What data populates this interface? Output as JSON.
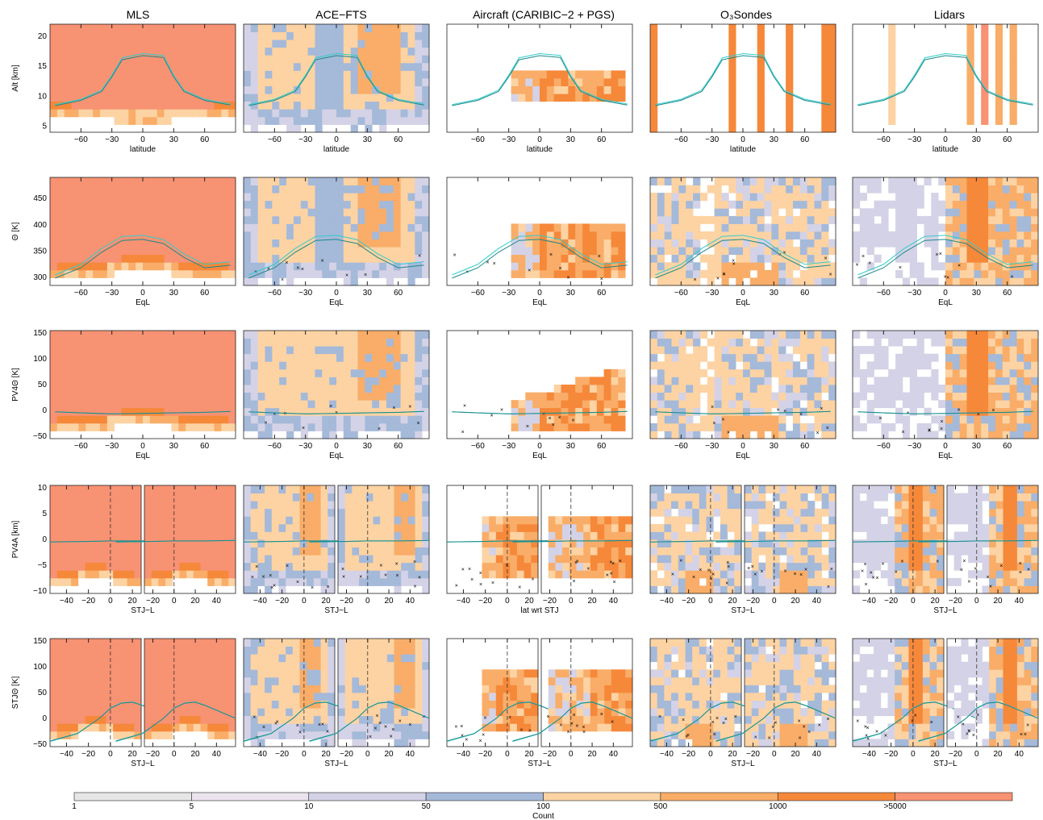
{
  "column_titles": [
    "MLS",
    "ACE−FTS",
    "Aircraft (CARIBIC−2 + PGS)",
    "O₃Sondes",
    "Lidars"
  ],
  "colorbar": {
    "label": "Count",
    "bins": [
      {
        "label": "1",
        "color": "#e6e6e6"
      },
      {
        "label": "5",
        "color": "#ebe4ef"
      },
      {
        "label": "10",
        "color": "#d4d2e6"
      },
      {
        "label": "50",
        "color": "#a5b9d9"
      },
      {
        "label": "100",
        "color": "#fdd3a3"
      },
      {
        "label": "500",
        "color": "#f9ad68"
      },
      {
        "label": "1000",
        "color": "#f6883a"
      },
      {
        "label": ">5000",
        "color": "#f79273"
      }
    ]
  },
  "chart_data": [
    {
      "row": 1,
      "type": "heatmap",
      "ylabel": "Alt [km]",
      "xlabel": "latitude",
      "xlim": [
        -90,
        90
      ],
      "ylim": [
        4,
        22
      ],
      "xticks": [
        "-60",
        "-30",
        "0",
        "30",
        "60"
      ],
      "yticks": [
        "5",
        "10",
        "15",
        "20"
      ],
      "tropopause_line_km": [
        [
          -85,
          8.6
        ],
        [
          -60,
          9.5
        ],
        [
          -40,
          11
        ],
        [
          -30,
          13.5
        ],
        [
          -20,
          16.4
        ],
        [
          0,
          17.1
        ],
        [
          20,
          16.8
        ],
        [
          30,
          13.5
        ],
        [
          40,
          11
        ],
        [
          60,
          9.5
        ],
        [
          85,
          8.7
        ]
      ]
    },
    {
      "row": 2,
      "type": "heatmap",
      "ylabel": "Θ [K]",
      "xlabel": "EqL",
      "xlim": [
        -90,
        90
      ],
      "ylim": [
        285,
        490
      ],
      "xticks": [
        "-60",
        "-30",
        "0",
        "30",
        "60"
      ],
      "yticks": [
        "300",
        "350",
        "400",
        "450"
      ],
      "tropopause_line_K": [
        [
          -85,
          305
        ],
        [
          -60,
          325
        ],
        [
          -40,
          355
        ],
        [
          -20,
          378
        ],
        [
          0,
          380
        ],
        [
          20,
          372
        ],
        [
          40,
          345
        ],
        [
          60,
          325
        ],
        [
          85,
          330
        ]
      ]
    },
    {
      "row": 3,
      "type": "heatmap",
      "ylabel": "PV4Θ [K]",
      "xlabel": "EqL",
      "xlim": [
        -90,
        90
      ],
      "ylim": [
        -55,
        155
      ],
      "xticks": [
        "-60",
        "-30",
        "0",
        "30",
        "60"
      ],
      "yticks": [
        "-50",
        "0",
        "50",
        "100",
        "150"
      ],
      "tropopause_line_K": [
        [
          -85,
          -3
        ],
        [
          -60,
          -5
        ],
        [
          -30,
          -7
        ],
        [
          0,
          -6
        ],
        [
          30,
          -5
        ],
        [
          60,
          -4
        ],
        [
          85,
          -2
        ]
      ]
    },
    {
      "row": 4,
      "type": "heatmap",
      "ylabel": "PV4A [km]",
      "xlabel": "STJ−L",
      "xlabel_aircraft": "lat wrt STJ",
      "sub_xlims": [
        [
          -55,
          28
        ],
        [
          -28,
          58
        ]
      ],
      "ylim": [
        -10.5,
        10.5
      ],
      "sub_xticks": [
        [
          "-40",
          "-20",
          "0",
          "20"
        ],
        [
          "-20",
          "0",
          "20",
          "40"
        ]
      ],
      "yticks": [
        "-10",
        "-5",
        "0",
        "5",
        "10"
      ],
      "tropopause_line_km": [
        [
          -55,
          -0.5
        ],
        [
          -20,
          -0.4
        ],
        [
          0,
          -0.3
        ],
        [
          30,
          -0.3
        ],
        [
          58,
          -0.2
        ]
      ]
    },
    {
      "row": 5,
      "type": "heatmap",
      "ylabel": "STJΘ [K]",
      "xlabel": "STJ−L",
      "sub_xlims": [
        [
          -55,
          28
        ],
        [
          -28,
          58
        ]
      ],
      "ylim": [
        -55,
        155
      ],
      "sub_xticks": [
        [
          "-40",
          "-20",
          "0",
          "20"
        ],
        [
          "-20",
          "0",
          "20",
          "40"
        ]
      ],
      "yticks": [
        "-50",
        "0",
        "50",
        "100",
        "150"
      ],
      "tropopause_line_K": [
        [
          -55,
          -45
        ],
        [
          -30,
          -30
        ],
        [
          -10,
          0
        ],
        [
          0,
          20
        ],
        [
          10,
          30
        ],
        [
          20,
          32
        ],
        [
          30,
          25
        ],
        [
          58,
          0
        ]
      ]
    }
  ]
}
